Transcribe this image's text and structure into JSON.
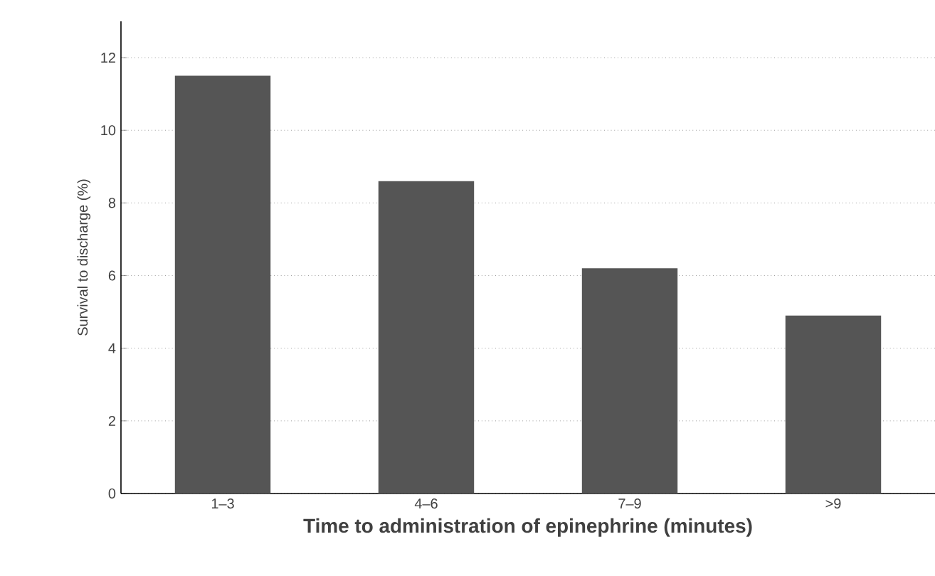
{
  "chart_data": {
    "type": "bar",
    "xlabel": "Time to administration of epinephrine (minutes)",
    "ylabel": "Survival to discharge (%)",
    "categories": [
      "1–3",
      "4–6",
      "7–9",
      ">9"
    ],
    "values": [
      11.5,
      8.6,
      6.2,
      4.9
    ],
    "color": "#555555",
    "ylim": [
      0,
      13
    ],
    "yticks": [
      0,
      2,
      4,
      6,
      8,
      10,
      12
    ],
    "grid": "y"
  }
}
